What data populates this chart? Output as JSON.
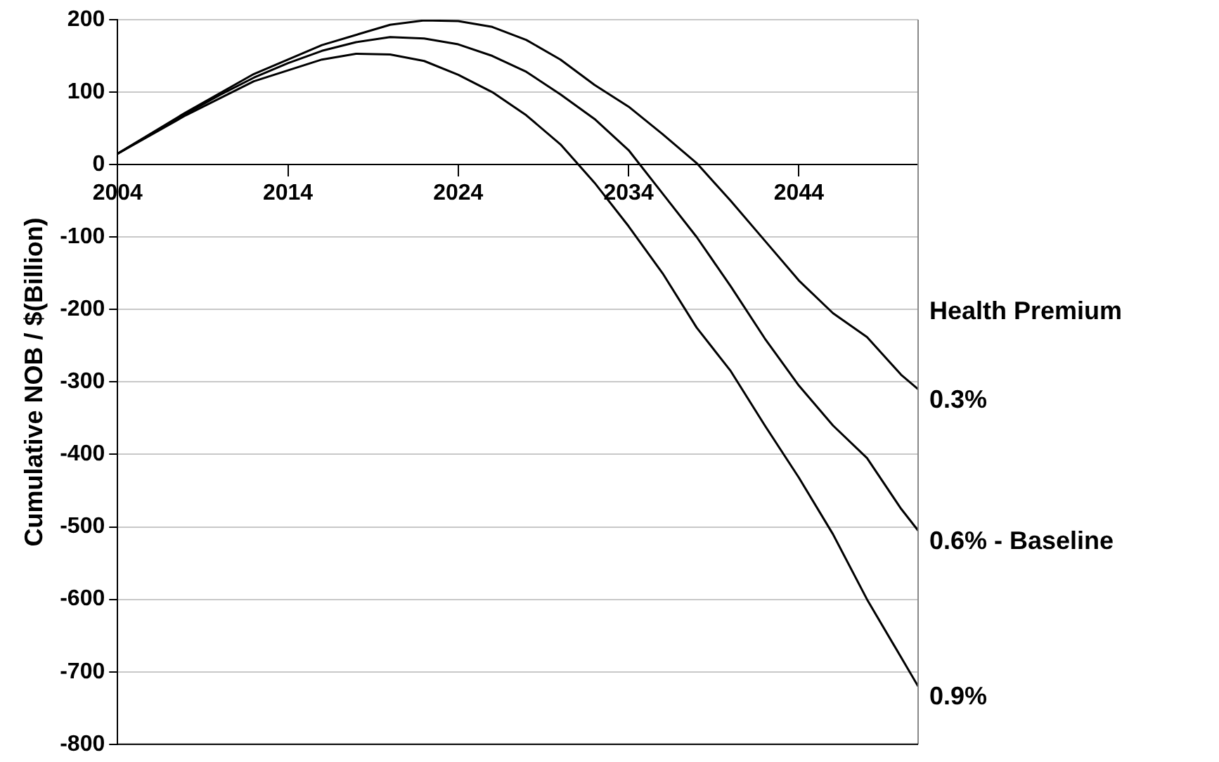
{
  "chart_data": {
    "type": "line",
    "ylabel": "Cumulative NOB / $(Billion)",
    "legend_title": "Health Premium",
    "xlim": [
      2004,
      2051
    ],
    "xticks": [
      2004,
      2014,
      2024,
      2034,
      2044
    ],
    "ylim": [
      -800,
      200
    ],
    "yticks": [
      -800,
      -700,
      -600,
      -500,
      -400,
      -300,
      -200,
      -100,
      0,
      100,
      200
    ],
    "grid": "y",
    "legend": "right",
    "marker": "none",
    "line_style": "solid",
    "series": [
      {
        "name": "0.3%",
        "color": "#000000",
        "x": [
          2004,
          2008,
          2012,
          2016,
          2020,
          2022,
          2024,
          2026,
          2028,
          2030,
          2032,
          2034,
          2036,
          2038,
          2040,
          2042,
          2044,
          2046,
          2048,
          2050,
          2051
        ],
        "values": [
          15,
          72,
          125,
          165,
          193,
          199,
          198,
          190,
          172,
          145,
          110,
          80,
          42,
          2,
          -50,
          -105,
          -160,
          -205,
          -238,
          -290,
          -310
        ]
      },
      {
        "name": "0.6% - Baseline",
        "color": "#000000",
        "x": [
          2004,
          2006,
          2008,
          2010,
          2012,
          2014,
          2016,
          2018,
          2020,
          2022,
          2024,
          2026,
          2028,
          2030,
          2032,
          2034,
          2036,
          2038,
          2040,
          2042,
          2044,
          2046,
          2048,
          2050,
          2051
        ],
        "values": [
          15,
          43,
          70,
          96,
          120,
          140,
          157,
          169,
          176,
          174,
          166,
          150,
          128,
          97,
          63,
          20,
          -40,
          -100,
          -168,
          -240,
          -305,
          -360,
          -405,
          -475,
          -505
        ]
      },
      {
        "name": "0.9%",
        "color": "#000000",
        "x": [
          2004,
          2008,
          2012,
          2016,
          2018,
          2020,
          2022,
          2024,
          2026,
          2028,
          2030,
          2032,
          2034,
          2036,
          2038,
          2040,
          2042,
          2044,
          2046,
          2048,
          2050,
          2051
        ],
        "values": [
          15,
          68,
          115,
          145,
          153,
          152,
          143,
          124,
          100,
          68,
          28,
          -25,
          -85,
          -150,
          -225,
          -285,
          -360,
          -432,
          -510,
          -600,
          -680,
          -720
        ]
      }
    ]
  }
}
